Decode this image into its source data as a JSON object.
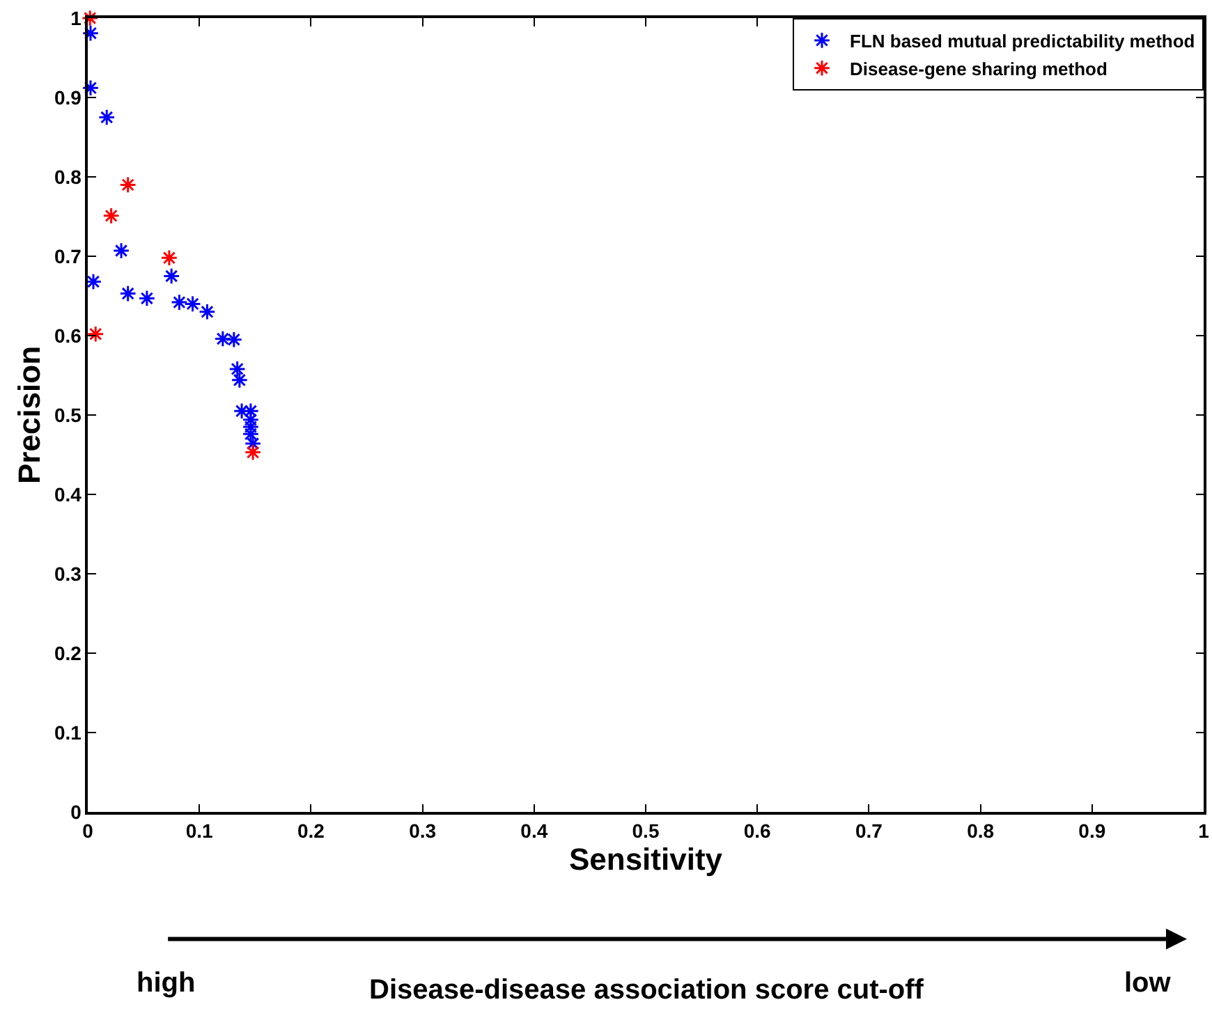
{
  "chart_data": {
    "type": "scatter",
    "xlabel": "Sensitivity",
    "ylabel": "Precision",
    "xlim": [
      0,
      1
    ],
    "ylim": [
      0,
      1
    ],
    "xticks": [
      0,
      0.1,
      0.2,
      0.3,
      0.4,
      0.5,
      0.6,
      0.7,
      0.8,
      0.9,
      1
    ],
    "yticks": [
      0,
      0.1,
      0.2,
      0.3,
      0.4,
      0.5,
      0.6,
      0.7,
      0.8,
      0.9,
      1
    ],
    "grid": false,
    "legend": "top right",
    "marker": "cross",
    "series": [
      {
        "name": "FLN based mutual predictability method",
        "color": "#0000ff",
        "x": [
          0.0025,
          0.0025,
          0.017,
          0.03,
          0.005,
          0.036,
          0.053,
          0.075,
          0.082,
          0.094,
          0.107,
          0.121,
          0.131,
          0.134,
          0.136,
          0.138,
          0.146,
          0.146,
          0.146,
          0.146,
          0.148
        ],
        "values": [
          0.981,
          0.912,
          0.875,
          0.707,
          0.668,
          0.653,
          0.647,
          0.675,
          0.642,
          0.64,
          0.63,
          0.596,
          0.595,
          0.558,
          0.544,
          0.505,
          0.505,
          0.494,
          0.485,
          0.476,
          0.464
        ]
      },
      {
        "name": "Disease-gene sharing method",
        "color": "#ff0000",
        "x": [
          0.002,
          0.036,
          0.021,
          0.073,
          0.007,
          0.148
        ],
        "values": [
          1.0,
          0.79,
          0.751,
          0.698,
          0.602,
          0.453
        ]
      }
    ],
    "annotations": [
      "high",
      "Disease-disease association score cut-off",
      "low"
    ]
  }
}
